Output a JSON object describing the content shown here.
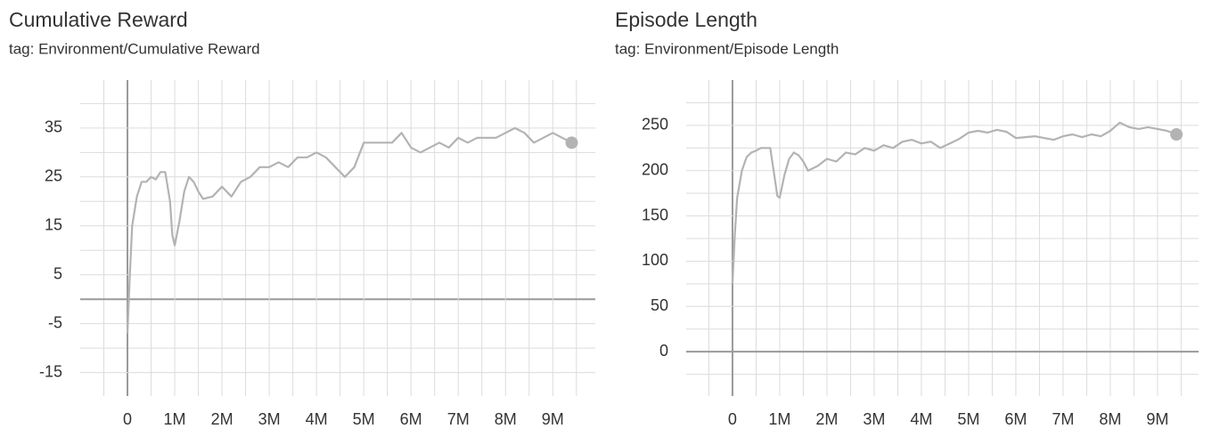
{
  "chart_data": [
    {
      "type": "line",
      "title": "Cumulative Reward",
      "subtitle": "tag: Environment/Cumulative Reward",
      "x": [
        0,
        50000,
        100000,
        200000,
        300000,
        400000,
        500000,
        600000,
        700000,
        800000,
        900000,
        950000,
        1000000,
        1100000,
        1200000,
        1300000,
        1400000,
        1500000,
        1600000,
        1800000,
        2000000,
        2200000,
        2400000,
        2600000,
        2800000,
        3000000,
        3200000,
        3400000,
        3600000,
        3800000,
        4000000,
        4200000,
        4400000,
        4600000,
        4800000,
        5000000,
        5200000,
        5400000,
        5600000,
        5800000,
        6000000,
        6200000,
        6400000,
        6600000,
        6800000,
        7000000,
        7200000,
        7400000,
        7600000,
        7800000,
        8000000,
        8200000,
        8400000,
        8600000,
        8800000,
        9000000,
        9200000,
        9400000
      ],
      "values": [
        -7,
        5,
        15,
        21,
        24,
        24,
        25,
        24.5,
        26,
        26,
        20,
        13,
        11,
        16,
        22,
        25,
        24,
        22,
        20.5,
        21,
        23,
        21,
        24,
        25,
        27,
        27,
        28,
        27,
        29,
        29,
        30,
        29,
        27,
        25,
        27,
        32,
        32,
        32,
        32,
        34,
        31,
        30,
        31,
        32,
        31,
        33,
        32,
        33,
        33,
        33,
        34,
        35,
        34,
        32,
        33,
        34,
        33,
        32
      ],
      "color": "#b3b3b3",
      "end_marker": true,
      "zero_lines": true,
      "grid": true,
      "xlim": [
        -1000000,
        9900000
      ],
      "xticks": [
        0,
        {
          "value": 1000000,
          "label": "1M"
        },
        {
          "value": 2000000,
          "label": "2M"
        },
        {
          "value": 3000000,
          "label": "3M"
        },
        {
          "value": 4000000,
          "label": "4M"
        },
        {
          "value": 5000000,
          "label": "5M"
        },
        {
          "value": 6000000,
          "label": "6M"
        },
        {
          "value": 7000000,
          "label": "7M"
        },
        {
          "value": 8000000,
          "label": "8M"
        },
        {
          "value": 9000000,
          "label": "9M"
        }
      ],
      "minor_xticks": [
        -500000,
        500000,
        1500000,
        2500000,
        3500000,
        4500000,
        5500000,
        6500000,
        7500000,
        8500000,
        9500000
      ],
      "ylim": [
        -19.8,
        44.8
      ],
      "yticks": [
        -15,
        -5,
        5,
        15,
        25,
        35
      ],
      "minor_yticks": [
        -10,
        0,
        10,
        20,
        30,
        40
      ]
    },
    {
      "type": "line",
      "title": "Episode Length",
      "subtitle": "tag: Environment/Episode Length",
      "x": [
        0,
        50000,
        100000,
        200000,
        300000,
        400000,
        500000,
        600000,
        700000,
        800000,
        900000,
        950000,
        1000000,
        1100000,
        1200000,
        1300000,
        1400000,
        1500000,
        1600000,
        1800000,
        2000000,
        2200000,
        2400000,
        2600000,
        2800000,
        3000000,
        3200000,
        3400000,
        3600000,
        3800000,
        4000000,
        4200000,
        4400000,
        4600000,
        4800000,
        5000000,
        5200000,
        5400000,
        5600000,
        5800000,
        6000000,
        6200000,
        6400000,
        6600000,
        6800000,
        7000000,
        7200000,
        7400000,
        7600000,
        7800000,
        8000000,
        8200000,
        8400000,
        8600000,
        8800000,
        9000000,
        9200000,
        9400000
      ],
      "values": [
        75,
        130,
        170,
        200,
        215,
        220,
        222,
        225,
        225,
        225,
        190,
        172,
        170,
        195,
        213,
        220,
        217,
        210,
        200,
        205,
        213,
        210,
        220,
        218,
        225,
        222,
        228,
        225,
        232,
        234,
        230,
        232,
        225,
        230,
        235,
        242,
        244,
        242,
        245,
        243,
        236,
        237,
        238,
        236,
        234,
        238,
        240,
        237,
        240,
        238,
        244,
        253,
        248,
        246,
        248,
        246,
        244,
        240
      ],
      "color": "#b3b3b3",
      "end_marker": true,
      "zero_lines": true,
      "grid": true,
      "xlim": [
        -980000,
        9870000
      ],
      "xticks": [
        0,
        {
          "value": 1000000,
          "label": "1M"
        },
        {
          "value": 2000000,
          "label": "2M"
        },
        {
          "value": 3000000,
          "label": "3M"
        },
        {
          "value": 4000000,
          "label": "4M"
        },
        {
          "value": 5000000,
          "label": "5M"
        },
        {
          "value": 6000000,
          "label": "6M"
        },
        {
          "value": 7000000,
          "label": "7M"
        },
        {
          "value": 8000000,
          "label": "8M"
        },
        {
          "value": 9000000,
          "label": "9M"
        }
      ],
      "minor_xticks": [
        -500000,
        500000,
        1500000,
        2500000,
        3500000,
        4500000,
        5500000,
        6500000,
        7500000,
        8500000,
        9500000
      ],
      "ylim": [
        -49,
        300
      ],
      "yticks": [
        0,
        50,
        100,
        150,
        200,
        250
      ],
      "minor_yticks": [
        -25,
        25,
        75,
        125,
        175,
        225,
        275
      ]
    }
  ]
}
